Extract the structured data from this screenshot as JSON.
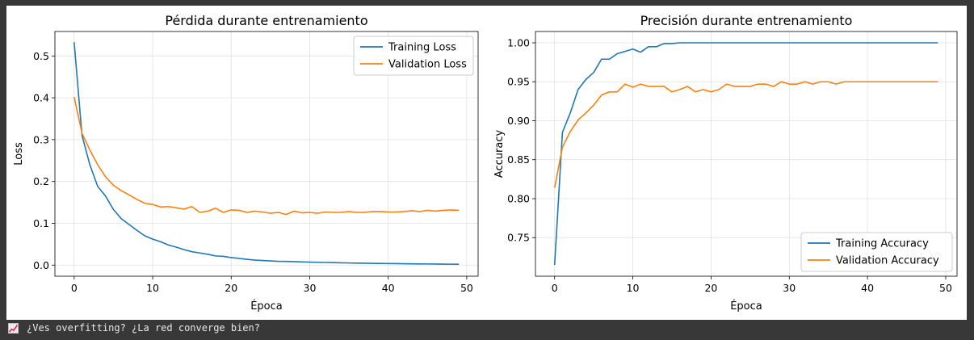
{
  "status_bar": {
    "icon": "chart-increasing-icon",
    "text": "¿Ves overfitting? ¿La red converge bien?"
  },
  "colors": {
    "training": "#1f77b4",
    "validation": "#ff7f0e",
    "grid": "#e0e0e0"
  },
  "chart_data": [
    {
      "type": "line",
      "title": "Pérdida durante entrenamiento",
      "xlabel": "Época",
      "ylabel": "Loss",
      "xlim": [
        -2.45,
        51.45
      ],
      "ylim": [
        -0.0265,
        0.5585
      ],
      "xticks": [
        0,
        10,
        20,
        30,
        40,
        50
      ],
      "yticks": [
        0.0,
        0.1,
        0.2,
        0.3,
        0.4,
        0.5
      ],
      "ytick_labels": [
        "0.0",
        "0.1",
        "0.2",
        "0.3",
        "0.4",
        "0.5"
      ],
      "grid": true,
      "legend_position": "upper right",
      "x": [
        0,
        1,
        2,
        3,
        4,
        5,
        6,
        7,
        8,
        9,
        10,
        11,
        12,
        13,
        14,
        15,
        16,
        17,
        18,
        19,
        20,
        21,
        22,
        23,
        24,
        25,
        26,
        27,
        28,
        29,
        30,
        31,
        32,
        33,
        34,
        35,
        36,
        37,
        38,
        39,
        40,
        41,
        42,
        43,
        44,
        45,
        46,
        47,
        48,
        49
      ],
      "series": [
        {
          "name": "Training Loss",
          "color": "#1f77b4",
          "values": [
            0.533,
            0.31,
            0.24,
            0.188,
            0.165,
            0.133,
            0.111,
            0.097,
            0.083,
            0.07,
            0.062,
            0.056,
            0.048,
            0.043,
            0.037,
            0.032,
            0.029,
            0.026,
            0.022,
            0.021,
            0.018,
            0.016,
            0.014,
            0.012,
            0.011,
            0.01,
            0.009,
            0.0088,
            0.0083,
            0.0077,
            0.0072,
            0.0068,
            0.0063,
            0.0059,
            0.0055,
            0.0051,
            0.0048,
            0.0045,
            0.0042,
            0.004,
            0.0037,
            0.0035,
            0.0033,
            0.0031,
            0.0029,
            0.0027,
            0.0025,
            0.0024,
            0.0022,
            0.0021
          ]
        },
        {
          "name": "Validation Loss",
          "color": "#ff7f0e",
          "values": [
            0.402,
            0.315,
            0.275,
            0.24,
            0.211,
            0.191,
            0.178,
            0.168,
            0.157,
            0.148,
            0.145,
            0.139,
            0.14,
            0.137,
            0.134,
            0.14,
            0.126,
            0.129,
            0.136,
            0.126,
            0.132,
            0.131,
            0.126,
            0.129,
            0.127,
            0.124,
            0.126,
            0.121,
            0.129,
            0.125,
            0.126,
            0.124,
            0.127,
            0.126,
            0.126,
            0.128,
            0.126,
            0.126,
            0.128,
            0.128,
            0.127,
            0.127,
            0.128,
            0.13,
            0.128,
            0.131,
            0.129,
            0.131,
            0.132,
            0.131
          ]
        }
      ]
    },
    {
      "type": "line",
      "title": "Precisión durante entrenamiento",
      "xlabel": "Época",
      "ylabel": "Accuracy",
      "xlim": [
        -2.45,
        51.45
      ],
      "ylim": [
        0.7005,
        1.0145
      ],
      "xticks": [
        0,
        10,
        20,
        30,
        40,
        50
      ],
      "yticks": [
        0.75,
        0.8,
        0.85,
        0.9,
        0.95,
        1.0
      ],
      "ytick_labels": [
        "0.75",
        "0.80",
        "0.85",
        "0.90",
        "0.95",
        "1.00"
      ],
      "grid": true,
      "legend_position": "lower right",
      "x": [
        0,
        1,
        2,
        3,
        4,
        5,
        6,
        7,
        8,
        9,
        10,
        11,
        12,
        13,
        14,
        15,
        16,
        17,
        18,
        19,
        20,
        21,
        22,
        23,
        24,
        25,
        26,
        27,
        28,
        29,
        30,
        31,
        32,
        33,
        34,
        35,
        36,
        37,
        38,
        39,
        40,
        41,
        42,
        43,
        44,
        45,
        46,
        47,
        48,
        49
      ],
      "series": [
        {
          "name": "Training Accuracy",
          "color": "#1f77b4",
          "values": [
            0.715,
            0.885,
            0.91,
            0.94,
            0.953,
            0.962,
            0.979,
            0.979,
            0.986,
            0.989,
            0.992,
            0.988,
            0.995,
            0.995,
            0.999,
            0.999,
            1.0,
            1.0,
            1.0,
            1.0,
            1.0,
            1.0,
            1.0,
            1.0,
            1.0,
            1.0,
            1.0,
            1.0,
            1.0,
            1.0,
            1.0,
            1.0,
            1.0,
            1.0,
            1.0,
            1.0,
            1.0,
            1.0,
            1.0,
            1.0,
            1.0,
            1.0,
            1.0,
            1.0,
            1.0,
            1.0,
            1.0,
            1.0,
            1.0,
            1.0
          ]
        },
        {
          "name": "Validation Accuracy",
          "color": "#ff7f0e",
          "values": [
            0.814,
            0.866,
            0.886,
            0.901,
            0.91,
            0.92,
            0.933,
            0.937,
            0.937,
            0.947,
            0.943,
            0.947,
            0.944,
            0.944,
            0.944,
            0.937,
            0.94,
            0.944,
            0.937,
            0.94,
            0.937,
            0.94,
            0.947,
            0.944,
            0.944,
            0.944,
            0.947,
            0.947,
            0.944,
            0.95,
            0.947,
            0.947,
            0.95,
            0.947,
            0.95,
            0.95,
            0.947,
            0.95,
            0.95,
            0.95,
            0.95,
            0.95,
            0.95,
            0.95,
            0.95,
            0.95,
            0.95,
            0.95,
            0.95,
            0.95
          ]
        }
      ]
    }
  ]
}
